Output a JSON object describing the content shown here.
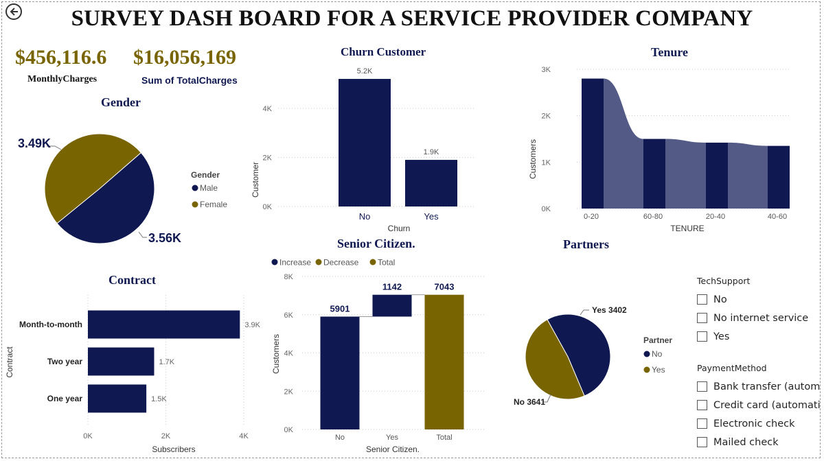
{
  "title": "SURVEY DASH BOARD FOR A  SERVICE PROVIDER COMPANY",
  "colors": {
    "navy": "#0f1850",
    "gold": "#786400",
    "tenure_ribbon": "#525a85"
  },
  "icons": {
    "back": "arrow-left-circle-icon"
  },
  "kpis": [
    {
      "value": "$456,116.6",
      "label": "MonthlyCharges"
    },
    {
      "value": "$16,056,169",
      "label": "Sum of TotalCharges"
    }
  ],
  "gender": {
    "title": "Gender",
    "legend_title": "Gender",
    "chart_data": {
      "type": "pie",
      "slices": [
        {
          "name": "Male",
          "value": 3.56,
          "label": "3.56K",
          "color": "#0f1850"
        },
        {
          "name": "Female",
          "value": 3.49,
          "label": "3.49K",
          "color": "#786400"
        }
      ]
    }
  },
  "churn": {
    "title": "Churn Customer",
    "chart_data": {
      "type": "bar",
      "categories": [
        "No",
        "Yes"
      ],
      "values": [
        5.2,
        1.9
      ],
      "data_labels": [
        "5.2K",
        "1.9K"
      ],
      "ticks": [
        "0K",
        "2K",
        "4K"
      ],
      "xlabel": "Churn",
      "ylabel": "Customer",
      "ylim": [
        0,
        5.9
      ]
    }
  },
  "tenure": {
    "title": "Tenure",
    "chart_data": {
      "type": "bar",
      "categories": [
        "0-20",
        "60-80",
        "20-40",
        "40-60"
      ],
      "values": [
        2.8,
        1.5,
        1.42,
        1.35
      ],
      "ticks": [
        "0K",
        "1K",
        "2K",
        "3K"
      ],
      "xlabel": "TENURE",
      "ylabel": "Customers",
      "ylim": [
        0,
        3
      ]
    }
  },
  "senior": {
    "title": "Senior Citizen.",
    "legend": [
      {
        "label": "Increase",
        "color": "#0f1850"
      },
      {
        "label": "Decrease",
        "color": "#786400"
      },
      {
        "label": "Total",
        "color": "#786400"
      }
    ],
    "chart_data": {
      "type": "bar",
      "subtype": "waterfall",
      "categories": [
        "No",
        "Yes",
        "Total"
      ],
      "steps": [
        {
          "start": 0,
          "end": 5901,
          "label": "5901",
          "kind": "increase"
        },
        {
          "start": 5901,
          "end": 7043,
          "label": "1142",
          "kind": "increase"
        },
        {
          "start": 0,
          "end": 7043,
          "label": "7043",
          "kind": "total"
        }
      ],
      "ticks": [
        "0K",
        "2K",
        "4K",
        "6K",
        "8K"
      ],
      "xlabel": "Senior Citizen.",
      "ylabel": "Customers",
      "ylim": [
        0,
        8000
      ]
    }
  },
  "contract": {
    "title": "Contract",
    "chart_data": {
      "type": "bar",
      "orientation": "horizontal",
      "categories": [
        "Month-to-month",
        "Two year",
        "One year"
      ],
      "values": [
        3.9,
        1.7,
        1.5
      ],
      "data_labels": [
        "3.9K",
        "1.7K",
        "1.5K"
      ],
      "ticks": [
        "0K",
        "2K",
        "4K"
      ],
      "xlabel": "Subscribers",
      "ylabel": "Contract",
      "xlim": [
        0,
        4
      ]
    }
  },
  "partners": {
    "title": "Partners",
    "legend_title": "Partner",
    "chart_data": {
      "type": "pie",
      "slices": [
        {
          "name": "No",
          "value": 3641,
          "label": "No 3641",
          "color": "#0f1850"
        },
        {
          "name": "Yes",
          "value": 3402,
          "label": "Yes 3402",
          "color": "#786400"
        }
      ]
    }
  },
  "techsupport": {
    "title": "TechSupport",
    "options": [
      "No",
      "No internet service",
      "Yes"
    ]
  },
  "payment": {
    "title": "PaymentMethod",
    "options": [
      "Bank transfer (autom...",
      "Credit card (automatic)",
      "Electronic check",
      "Mailed check"
    ]
  }
}
